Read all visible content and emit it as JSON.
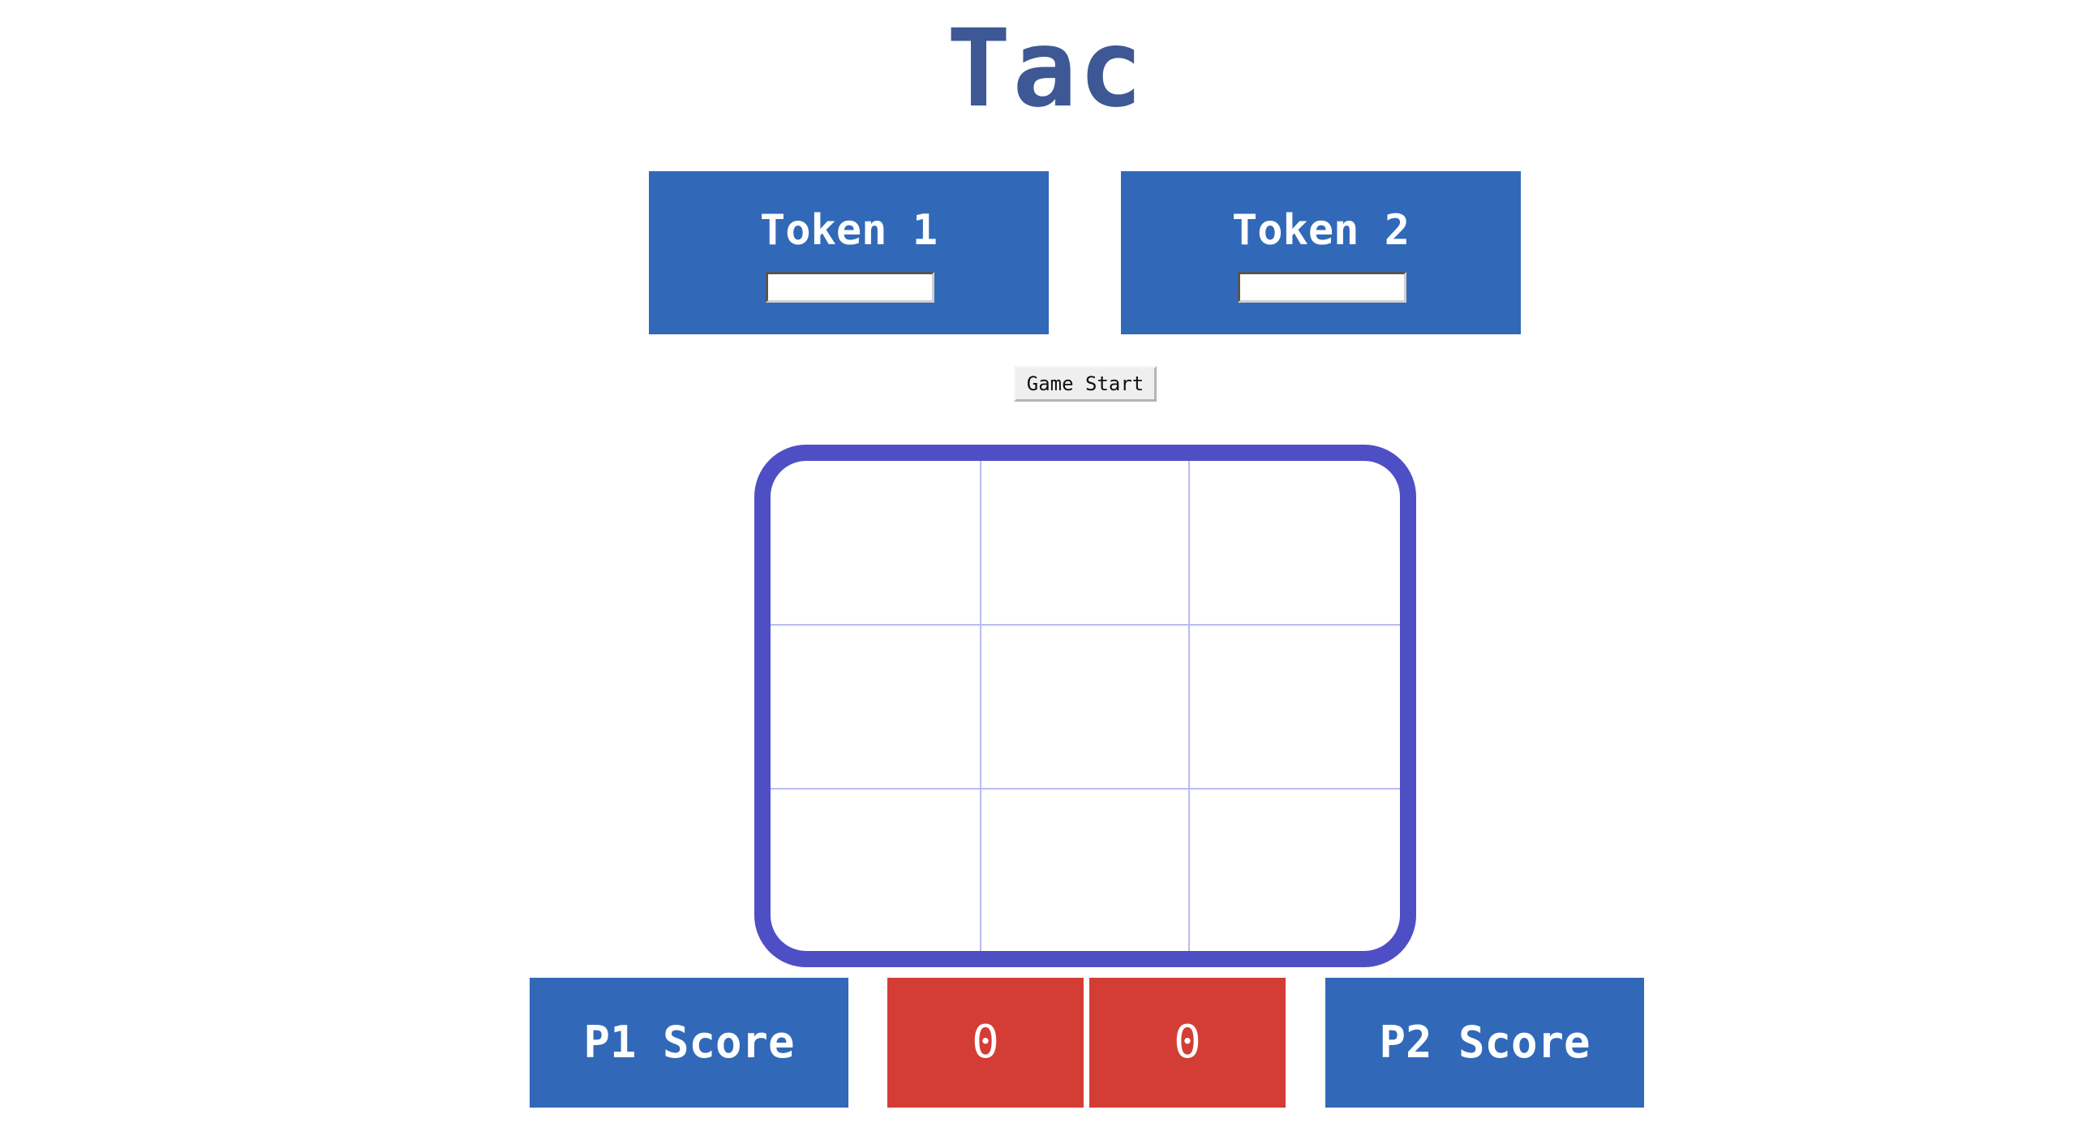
{
  "title": "Tac",
  "tokens": {
    "player1": {
      "label": "Token 1",
      "value": ""
    },
    "player2": {
      "label": "Token 2",
      "value": ""
    }
  },
  "start_button": {
    "label": "Game Start"
  },
  "board": {
    "cells": [
      "",
      "",
      "",
      "",
      "",
      "",
      "",
      "",
      ""
    ]
  },
  "scores": {
    "p1_label": "P1 Score",
    "p1_value": "0",
    "p2_value": "0",
    "p2_label": "P2 Score"
  },
  "colors": {
    "title": "#3d5894",
    "panel_blue": "#3169b8",
    "board_border": "#4f4fc5",
    "grid_line": "#b9bcf0",
    "score_red": "#d33d35"
  }
}
